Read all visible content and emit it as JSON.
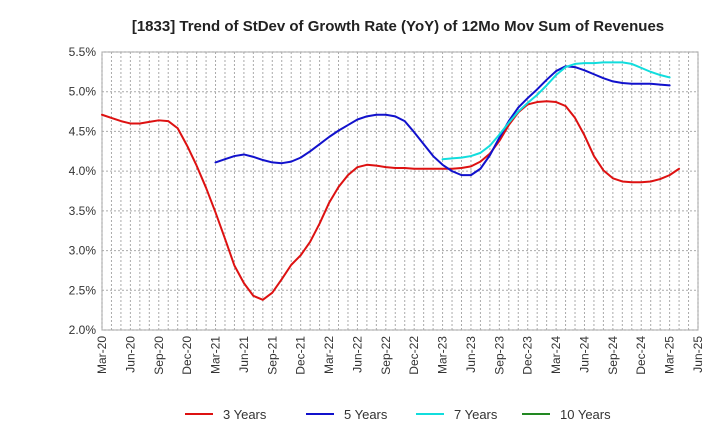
{
  "chart_data": {
    "type": "line",
    "title": "[1833]  Trend of StDev of Growth Rate (YoY) of 12Mo Mov Sum of Revenues",
    "xlabel": "",
    "ylabel": "",
    "ylim": [
      0.02,
      0.055
    ],
    "y_ticks": [
      {
        "value": 0.055,
        "label": "5.5%"
      },
      {
        "value": 0.05,
        "label": "5.0%"
      },
      {
        "value": 0.045,
        "label": "4.5%"
      },
      {
        "value": 0.04,
        "label": "4.0%"
      },
      {
        "value": 0.035,
        "label": "3.5%"
      },
      {
        "value": 0.03,
        "label": "3.0%"
      },
      {
        "value": 0.025,
        "label": "2.5%"
      },
      {
        "value": 0.02,
        "label": "2.0%"
      }
    ],
    "x_ticks": [
      "Mar-20",
      "Jun-20",
      "Sep-20",
      "Dec-20",
      "Mar-21",
      "Jun-21",
      "Sep-21",
      "Dec-21",
      "Mar-22",
      "Jun-22",
      "Sep-22",
      "Dec-22",
      "Mar-23",
      "Jun-23",
      "Sep-23",
      "Dec-23",
      "Mar-24",
      "Jun-24",
      "Sep-24",
      "Dec-24",
      "Mar-25",
      "Jun-25"
    ],
    "grid": true,
    "legend_position": "bottom",
    "series": [
      {
        "name": "3 Years",
        "color": "#dd1111",
        "start_index": 0,
        "values": [
          0.0471,
          0.0467,
          0.0463,
          0.046,
          0.046,
          0.0462,
          0.0464,
          0.0463,
          0.0454,
          0.0432,
          0.0407,
          0.0379,
          0.0348,
          0.0315,
          0.0281,
          0.0259,
          0.0243,
          0.0238,
          0.0247,
          0.0264,
          0.0282,
          0.0294,
          0.0311,
          0.0334,
          0.036,
          0.038,
          0.0395,
          0.0405,
          0.0408,
          0.0407,
          0.0405,
          0.0404,
          0.0404,
          0.0403,
          0.0403,
          0.0403,
          0.0403,
          0.0403,
          0.0404,
          0.0406,
          0.0412,
          0.0422,
          0.0438,
          0.0458,
          0.0474,
          0.0484,
          0.0487,
          0.0488,
          0.0487,
          0.0482,
          0.0467,
          0.0445,
          0.0419,
          0.0401,
          0.0391,
          0.0387,
          0.0386,
          0.0386,
          0.0387,
          0.039,
          0.0395,
          0.0403
        ]
      },
      {
        "name": "5 Years",
        "color": "#1111cc",
        "start_index": 12,
        "values": [
          0.0411,
          0.0415,
          0.0419,
          0.0421,
          0.0418,
          0.0414,
          0.0411,
          0.041,
          0.0412,
          0.0417,
          0.0425,
          0.0434,
          0.0443,
          0.0451,
          0.0458,
          0.0465,
          0.0469,
          0.0471,
          0.0471,
          0.0469,
          0.0463,
          0.0449,
          0.0434,
          0.0419,
          0.0408,
          0.04,
          0.0395,
          0.0395,
          0.0403,
          0.042,
          0.0442,
          0.0463,
          0.048,
          0.0492,
          0.0503,
          0.0515,
          0.0526,
          0.0532,
          0.0531,
          0.0527,
          0.0522,
          0.0517,
          0.0513,
          0.0511,
          0.051,
          0.051,
          0.051,
          0.0509,
          0.0508
        ]
      },
      {
        "name": "7 Years",
        "color": "#11dddd",
        "start_index": 36,
        "values": [
          0.0415,
          0.0416,
          0.0417,
          0.0419,
          0.0423,
          0.0432,
          0.0446,
          0.0461,
          0.0475,
          0.0486,
          0.0496,
          0.0508,
          0.0521,
          0.0531,
          0.0535,
          0.0536,
          0.0536,
          0.0537,
          0.0537,
          0.0537,
          0.0535,
          0.053,
          0.0525,
          0.0521,
          0.0518
        ]
      },
      {
        "name": "10 Years",
        "color": "#228822",
        "start_index": 0,
        "values": []
      }
    ]
  }
}
